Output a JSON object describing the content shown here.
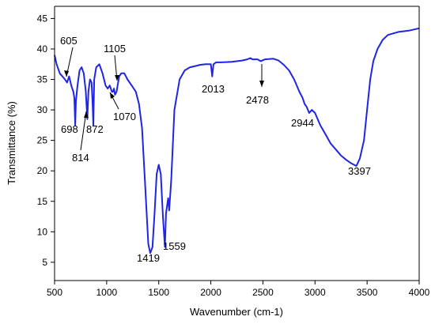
{
  "chart_data": {
    "type": "line",
    "title": "",
    "xlabel": "Wavenumber (cm-1)",
    "ylabel": "Transmittance (%)",
    "xlim": [
      500,
      4000
    ],
    "ylim": [
      2,
      47
    ],
    "x_ticks": [
      500,
      1000,
      1500,
      2000,
      2500,
      3000,
      3500,
      4000
    ],
    "y_ticks": [
      5,
      10,
      15,
      20,
      25,
      30,
      35,
      40,
      45
    ],
    "grid": false,
    "line_color": "#1f25e6",
    "series": [
      {
        "x": [
          500,
          520,
          550,
          575,
          600,
          620,
          640,
          660,
          680,
          690,
          698,
          705,
          720,
          740,
          760,
          780,
          800,
          814,
          825,
          840,
          855,
          865,
          872,
          880,
          900,
          930,
          960,
          990,
          1010,
          1030,
          1050,
          1060,
          1070,
          1080,
          1095,
          1105,
          1120,
          1140,
          1170,
          1200,
          1240,
          1280,
          1310,
          1340,
          1370,
          1400,
          1419,
          1440,
          1460,
          1480,
          1500,
          1520,
          1540,
          1559,
          1570,
          1590,
          1600,
          1620,
          1650,
          1700,
          1750,
          1800,
          1850,
          1900,
          1950,
          2000,
          2013,
          2025,
          2050,
          2100,
          2200,
          2300,
          2350,
          2380,
          2400,
          2450,
          2478,
          2520,
          2600,
          2650,
          2700,
          2750,
          2800,
          2850,
          2880,
          2900,
          2920,
          2944,
          2970,
          3000,
          3050,
          3100,
          3150,
          3200,
          3250,
          3300,
          3350,
          3397,
          3430,
          3470,
          3500,
          3530,
          3560,
          3600,
          3650,
          3700,
          3800,
          3900,
          4000
        ],
        "y": [
          39.0,
          37.5,
          36.0,
          35.5,
          35.0,
          34.5,
          35.5,
          34.0,
          33.0,
          32.0,
          27.5,
          31.5,
          34.0,
          36.5,
          37.0,
          36.0,
          33.0,
          28.5,
          33.0,
          35.0,
          34.5,
          31.0,
          27.5,
          35.0,
          37.0,
          37.5,
          36.0,
          34.0,
          33.5,
          34.0,
          33.0,
          33.0,
          33.5,
          32.5,
          33.0,
          34.0,
          35.5,
          36.0,
          36.0,
          35.0,
          34.0,
          33.0,
          31.0,
          27.0,
          17.5,
          8.0,
          6.5,
          7.5,
          13.0,
          19.5,
          21.0,
          19.5,
          12.5,
          7.5,
          13.0,
          15.5,
          13.5,
          18.5,
          30.0,
          35.0,
          36.5,
          37.0,
          37.2,
          37.4,
          37.5,
          37.5,
          35.5,
          37.5,
          37.8,
          37.8,
          37.9,
          38.1,
          38.3,
          38.5,
          38.3,
          38.3,
          38.0,
          38.3,
          38.4,
          38.1,
          37.4,
          36.5,
          35.0,
          33.0,
          32.0,
          31.0,
          30.5,
          29.5,
          30.0,
          29.5,
          27.5,
          26.0,
          24.5,
          23.5,
          22.5,
          21.8,
          21.2,
          20.8,
          22.0,
          25.0,
          30.0,
          35.0,
          38.0,
          40.0,
          41.5,
          42.3,
          42.8,
          43.0,
          43.4
        ]
      }
    ],
    "annotations": [
      {
        "text": "605"
      },
      {
        "text": "698"
      },
      {
        "text": "814"
      },
      {
        "text": "872"
      },
      {
        "text": "1070"
      },
      {
        "text": "1105"
      },
      {
        "text": "1419"
      },
      {
        "text": "1559"
      },
      {
        "text": "2013"
      },
      {
        "text": "2478"
      },
      {
        "text": "2944"
      },
      {
        "text": "3397"
      }
    ]
  }
}
